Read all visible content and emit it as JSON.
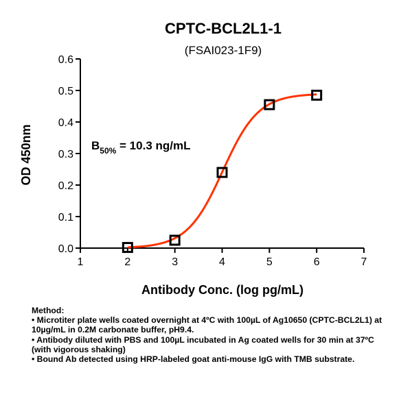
{
  "chart_data": {
    "type": "scatter",
    "title": "CPTC-BCL2L1-1",
    "subtitle": "(FSAI023-1F9)",
    "xlabel": "Antibody Conc. (log pg/mL)",
    "ylabel": "OD 450nm",
    "xlim": [
      1,
      7
    ],
    "ylim": [
      0,
      0.6
    ],
    "x_ticks": [
      "1",
      "2",
      "3",
      "4",
      "5",
      "6",
      "7"
    ],
    "y_ticks": [
      "0.0",
      "0.1",
      "0.2",
      "0.3",
      "0.4",
      "0.5",
      "0.6"
    ],
    "grid": false,
    "points": [
      {
        "x": 2,
        "y": 0.002
      },
      {
        "x": 3,
        "y": 0.025
      },
      {
        "x": 4,
        "y": 0.24
      },
      {
        "x": 5,
        "y": 0.455
      },
      {
        "x": 6,
        "y": 0.485
      }
    ],
    "fit_curve": {
      "model": "4PL",
      "bottom": 0.0,
      "top": 0.49,
      "log_ec50": 4.013,
      "hill_slope": 1.15,
      "x_range": [
        2,
        6
      ],
      "color": "#ff3300"
    },
    "marker_color": "#000000",
    "annotation": {
      "prefix": "B",
      "subscript": "50%",
      "text": " = 10.3 ng/mL"
    }
  },
  "method": {
    "heading": "Method:",
    "bullets": [
      "• Microtiter plate wells coated overnight at 4ºC  with 100µL of Ag10650 (CPTC-BCL2L1) at 10µg/mL in 0.2M carbonate buffer, pH9.4.",
      "• Antibody diluted with PBS and 100µL incubated in Ag coated wells for 30 min at 37ºC (with vigorous shaking)",
      "• Bound Ab detected using HRP-labeled goat anti-mouse IgG with TMB substrate."
    ]
  }
}
